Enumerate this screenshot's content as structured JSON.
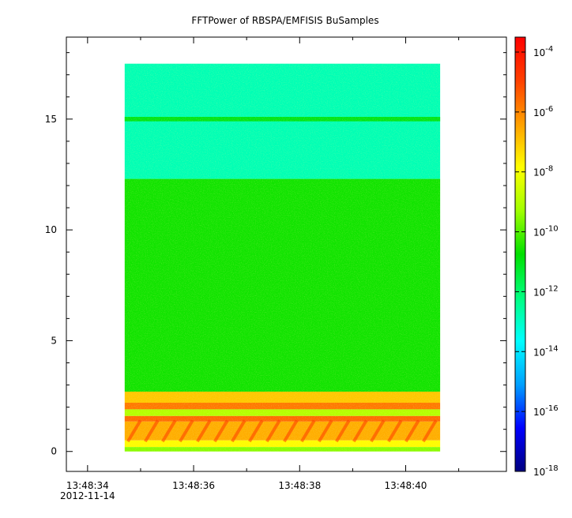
{
  "chart_data": {
    "type": "heatmap",
    "title": "FFTPower of RBSPA/EMFISIS  BuSamples",
    "xlabel": "",
    "ylabel": "",
    "x": {
      "ticks": [
        {
          "value": 34,
          "label": "13:48:34",
          "sublabel": "2012-11-14"
        },
        {
          "value": 36,
          "label": "13:48:36"
        },
        {
          "value": 38,
          "label": "13:48:38"
        },
        {
          "value": 40,
          "label": "13:48:40"
        }
      ],
      "minor_ticks": [
        35,
        37,
        39,
        41
      ],
      "range": [
        33.6,
        41.9
      ]
    },
    "y": {
      "ticks": [
        0,
        5,
        10,
        15
      ],
      "range": [
        -0.9,
        18.7
      ]
    },
    "data_extent": {
      "x": [
        34.7,
        40.65
      ],
      "y": [
        0.0,
        17.5
      ]
    },
    "colorbar": {
      "scale": "log",
      "range_exp": [
        -18,
        -3.5
      ],
      "tick_exponents": [
        -4,
        -6,
        -8,
        -10,
        -12,
        -14,
        -16,
        -18
      ],
      "tick_base": "10",
      "colormap": [
        "#00007f",
        "#0000ff",
        "#00a0ff",
        "#00ffff",
        "#00ff80",
        "#00e000",
        "#a0ff00",
        "#ffff00",
        "#ffa000",
        "#ff4000",
        "#ff0000"
      ]
    },
    "bands": [
      {
        "y": [
          12.3,
          17.5
        ],
        "level": "-12.8"
      },
      {
        "y": [
          14.9,
          15.1
        ],
        "level": "-11.0"
      },
      {
        "y": [
          2.7,
          12.3
        ],
        "level": "-10.6"
      },
      {
        "y": [
          2.2,
          2.7
        ],
        "level": "-7.0"
      },
      {
        "y": [
          1.9,
          2.2
        ],
        "level": "-5.8"
      },
      {
        "y": [
          1.6,
          1.9
        ],
        "level": "-9.0"
      },
      {
        "y": [
          1.35,
          1.6
        ],
        "level": "-5.6"
      },
      {
        "y": [
          0.5,
          1.35
        ],
        "level": "-6.6"
      },
      {
        "y": [
          0.2,
          0.5
        ],
        "level": "-7.8"
      },
      {
        "y": [
          0.0,
          0.2
        ],
        "level": "-9.5"
      }
    ]
  }
}
